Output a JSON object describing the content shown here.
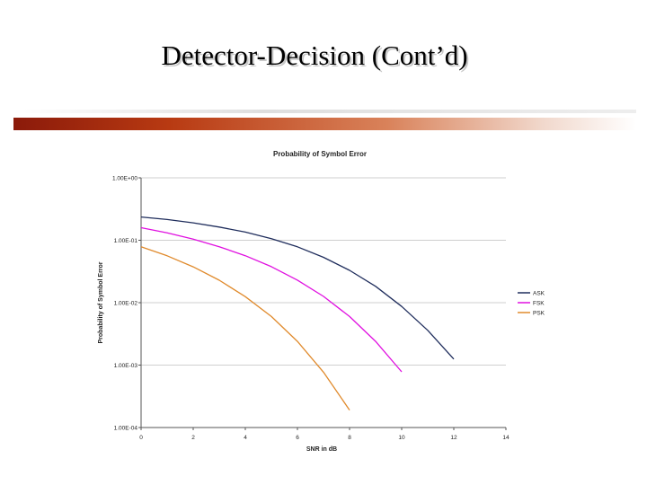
{
  "slide": {
    "title": "Detector-Decision (Cont’d)"
  },
  "colors": {
    "title_bar_dark": "#8b1a0a",
    "title_bar_light": "#f1d8cc"
  },
  "chart_data": {
    "type": "line",
    "title": "Probability of Symbol Error",
    "xlabel": "SNR in dB",
    "ylabel": "Probability of Symbol Error",
    "xlim": [
      0,
      14
    ],
    "ylim": [
      0.0001,
      1
    ],
    "yscale": "log",
    "grid": true,
    "legend": "right",
    "x_ticks": [
      "0",
      "2",
      "4",
      "6",
      "8",
      "10",
      "12",
      "14"
    ],
    "y_ticks": [
      "1.00E+00",
      "1.00E-01",
      "1.00E-02",
      "1.00E-03",
      "1.00E-04"
    ],
    "series": [
      {
        "name": "ASK",
        "color": "#1f2d5c",
        "x": [
          0,
          1,
          2,
          3,
          4,
          5,
          6,
          7,
          8,
          9,
          10,
          11,
          12
        ],
        "values": [
          0.236,
          0.215,
          0.19,
          0.163,
          0.135,
          0.106,
          0.0785,
          0.0533,
          0.033,
          0.0183,
          0.0087,
          0.0036,
          0.00125
        ]
      },
      {
        "name": "FSK",
        "color": "#e010e0",
        "x": [
          0,
          1,
          2,
          3,
          4,
          5,
          6,
          7,
          8,
          9,
          10
        ],
        "values": [
          0.159,
          0.131,
          0.104,
          0.0788,
          0.0565,
          0.0377,
          0.023,
          0.0126,
          0.006,
          0.0024,
          0.00078
        ]
      },
      {
        "name": "PSK",
        "color": "#e08a2c",
        "x": [
          0,
          1,
          2,
          3,
          4,
          5,
          6,
          7,
          8
        ],
        "values": [
          0.0786,
          0.0563,
          0.0375,
          0.0229,
          0.0125,
          0.006,
          0.0024,
          0.00077,
          0.00019
        ]
      }
    ]
  }
}
